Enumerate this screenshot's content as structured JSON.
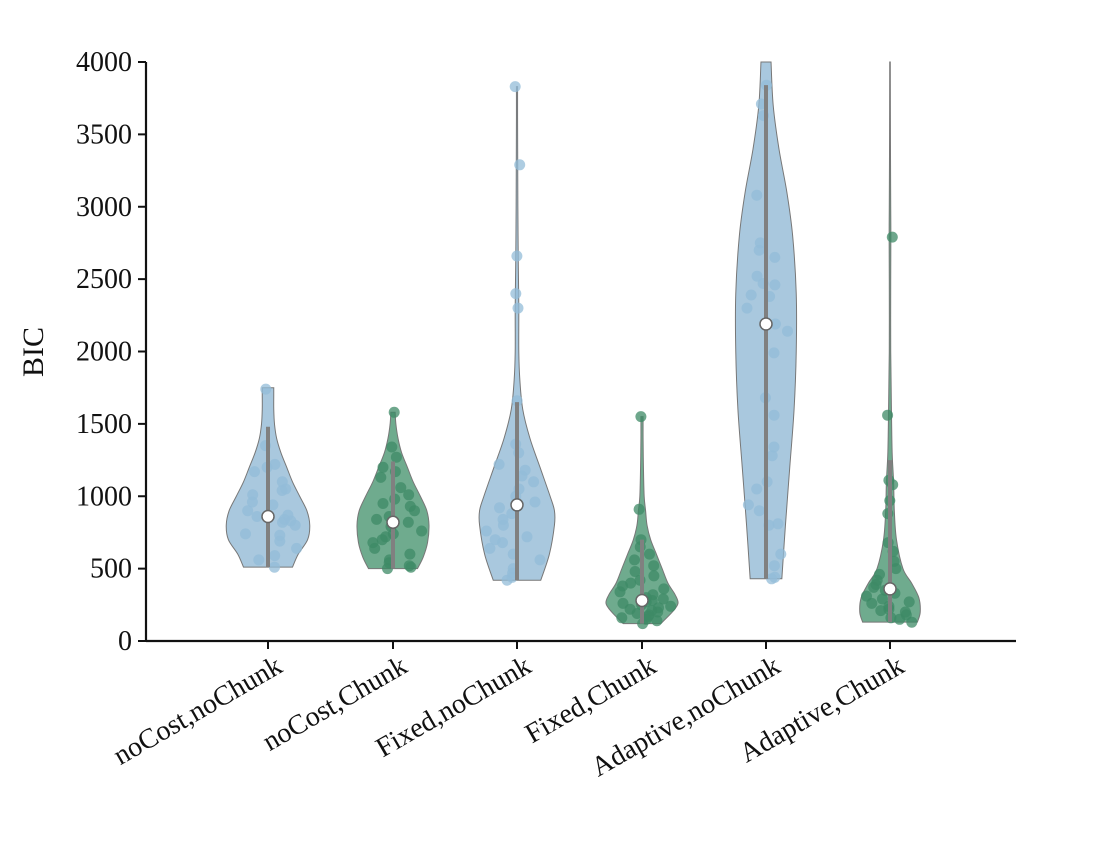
{
  "chart_data": {
    "type": "violin",
    "ylabel": "BIC",
    "ylim": [
      0,
      4000
    ],
    "yticks": [
      0,
      500,
      1000,
      1500,
      2000,
      2500,
      3000,
      3500,
      4000
    ],
    "categories": [
      "noCost,noChunk",
      "noCost,Chunk",
      "Fixed,noChunk",
      "Fixed,Chunk",
      "Adaptive,noChunk",
      "Adaptive,Chunk"
    ],
    "colors": {
      "noChunk": "#a9c8de",
      "Chunk": "#6fab8e",
      "noChunk_point": "#93bcd8",
      "Chunk_point": "#3d8a66",
      "whisker": "#808080",
      "axis": "#111111"
    },
    "series": [
      {
        "category": "noCost,noChunk",
        "color_key": "noChunk",
        "median": 860,
        "q1": 510,
        "q3": 1480,
        "range": [
          510,
          1750
        ],
        "violin": [
          [
            510,
            0.34
          ],
          [
            600,
            0.42
          ],
          [
            700,
            0.55
          ],
          [
            800,
            0.58
          ],
          [
            900,
            0.54
          ],
          [
            1000,
            0.44
          ],
          [
            1100,
            0.34
          ],
          [
            1200,
            0.26
          ],
          [
            1300,
            0.18
          ],
          [
            1400,
            0.12
          ],
          [
            1500,
            0.09
          ],
          [
            1600,
            0.08
          ],
          [
            1700,
            0.08
          ],
          [
            1750,
            0.08
          ]
        ],
        "points": [
          510,
          560,
          590,
          640,
          690,
          730,
          740,
          800,
          820,
          830,
          840,
          860,
          870,
          900,
          940,
          960,
          1010,
          1040,
          1050,
          1100,
          1170,
          1200,
          1220,
          1350,
          1740
        ]
      },
      {
        "category": "noCost,Chunk",
        "color_key": "Chunk",
        "median": 820,
        "q1": 500,
        "q3": 1240,
        "range": [
          500,
          1580
        ],
        "violin": [
          [
            500,
            0.34
          ],
          [
            580,
            0.42
          ],
          [
            680,
            0.48
          ],
          [
            800,
            0.5
          ],
          [
            900,
            0.47
          ],
          [
            1000,
            0.38
          ],
          [
            1100,
            0.28
          ],
          [
            1200,
            0.2
          ],
          [
            1300,
            0.12
          ],
          [
            1400,
            0.07
          ],
          [
            1500,
            0.04
          ],
          [
            1580,
            0.03
          ]
        ],
        "points": [
          500,
          510,
          520,
          540,
          560,
          600,
          640,
          680,
          700,
          720,
          740,
          760,
          790,
          820,
          840,
          860,
          900,
          930,
          950,
          980,
          1010,
          1060,
          1130,
          1170,
          1200,
          1270,
          1340,
          1580
        ]
      },
      {
        "category": "Fixed,noChunk",
        "color_key": "noChunk",
        "median": 940,
        "q1": 420,
        "q3": 1650,
        "range": [
          420,
          3830
        ],
        "violin": [
          [
            420,
            0.33
          ],
          [
            600,
            0.45
          ],
          [
            800,
            0.52
          ],
          [
            900,
            0.52
          ],
          [
            1000,
            0.46
          ],
          [
            1200,
            0.32
          ],
          [
            1400,
            0.18
          ],
          [
            1600,
            0.08
          ],
          [
            1800,
            0.04
          ],
          [
            2000,
            0.025
          ],
          [
            2300,
            0.025
          ],
          [
            2600,
            0.018
          ],
          [
            3000,
            0.012
          ],
          [
            3300,
            0.01
          ],
          [
            3600,
            0.008
          ],
          [
            3830,
            0.008
          ]
        ],
        "points": [
          420,
          440,
          470,
          500,
          560,
          600,
          640,
          680,
          700,
          720,
          760,
          800,
          840,
          880,
          920,
          960,
          1000,
          1050,
          1100,
          1140,
          1180,
          1220,
          1300,
          1360,
          1660,
          2300,
          2400,
          2660,
          3290,
          3830
        ]
      },
      {
        "category": "Fixed,Chunk",
        "color_key": "Chunk",
        "median": 280,
        "q1": 120,
        "q3": 700,
        "range": [
          120,
          1550
        ],
        "violin": [
          [
            120,
            0.26
          ],
          [
            200,
            0.42
          ],
          [
            260,
            0.5
          ],
          [
            320,
            0.46
          ],
          [
            400,
            0.36
          ],
          [
            500,
            0.28
          ],
          [
            600,
            0.2
          ],
          [
            700,
            0.12
          ],
          [
            800,
            0.07
          ],
          [
            900,
            0.05
          ],
          [
            1000,
            0.03
          ],
          [
            1200,
            0.02
          ],
          [
            1400,
            0.015
          ],
          [
            1550,
            0.015
          ]
        ],
        "points": [
          120,
          140,
          150,
          160,
          170,
          180,
          190,
          200,
          210,
          220,
          230,
          240,
          250,
          260,
          270,
          280,
          290,
          300,
          320,
          340,
          360,
          380,
          400,
          420,
          450,
          480,
          520,
          560,
          600,
          650,
          700,
          910,
          1550
        ]
      },
      {
        "category": "Adaptive,noChunk",
        "color_key": "noChunk",
        "median": 2190,
        "q1": 430,
        "q3": 3840,
        "range": [
          430,
          4000
        ],
        "violin": [
          [
            430,
            0.22
          ],
          [
            800,
            0.27
          ],
          [
            1200,
            0.33
          ],
          [
            1600,
            0.39
          ],
          [
            2000,
            0.42
          ],
          [
            2400,
            0.42
          ],
          [
            2800,
            0.37
          ],
          [
            3100,
            0.29
          ],
          [
            3400,
            0.18
          ],
          [
            3700,
            0.1
          ],
          [
            4000,
            0.07
          ]
        ],
        "points": [
          430,
          440,
          520,
          600,
          800,
          810,
          900,
          940,
          1050,
          1100,
          1280,
          1340,
          1560,
          1680,
          1990,
          2140,
          2190,
          2300,
          2380,
          2390,
          2460,
          2470,
          2520,
          2650,
          2700,
          2750,
          3080,
          3630,
          3710,
          3840
        ]
      },
      {
        "category": "Adaptive,Chunk",
        "color_key": "Chunk",
        "median": 360,
        "q1": 130,
        "q3": 1250,
        "range": [
          130,
          4000
        ],
        "violin": [
          [
            130,
            0.38
          ],
          [
            200,
            0.42
          ],
          [
            300,
            0.4
          ],
          [
            400,
            0.3
          ],
          [
            500,
            0.18
          ],
          [
            700,
            0.09
          ],
          [
            900,
            0.06
          ],
          [
            1100,
            0.05
          ],
          [
            1300,
            0.03
          ],
          [
            1600,
            0.02
          ],
          [
            2000,
            0.01
          ],
          [
            2500,
            0.01
          ],
          [
            2800,
            0.012
          ],
          [
            3000,
            0.01
          ],
          [
            3500,
            0.006
          ],
          [
            4000,
            0.004
          ]
        ],
        "points": [
          130,
          150,
          160,
          180,
          200,
          210,
          220,
          240,
          260,
          270,
          290,
          310,
          330,
          350,
          370,
          390,
          420,
          460,
          500,
          550,
          620,
          680,
          880,
          970,
          1080,
          1110,
          1560,
          2790
        ]
      }
    ]
  }
}
